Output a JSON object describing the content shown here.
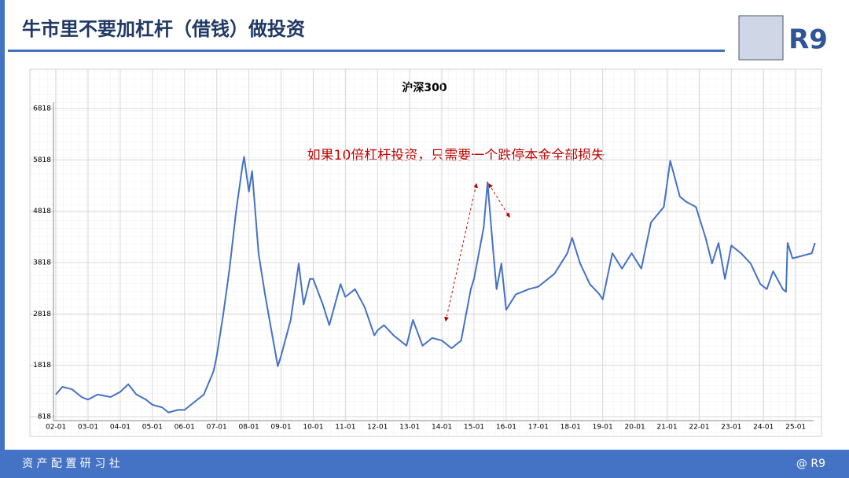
{
  "header": {
    "title": "牛市里不要加杠杆（借钱）做投资",
    "brand": "R9"
  },
  "footer": {
    "left": "资 产 配 置 研 习 社",
    "right": "@ R9"
  },
  "chart_data": {
    "type": "line",
    "title": "沪深300",
    "annotation": "如果10倍杠杆投资，只需要一个跌停本金全部损失",
    "series": [
      {
        "name": "沪深300",
        "color": "#4472c4",
        "x": [
          2002.0,
          2002.2,
          2002.5,
          2002.8,
          2003.0,
          2003.3,
          2003.7,
          2004.0,
          2004.25,
          2004.5,
          2004.8,
          2005.0,
          2005.3,
          2005.5,
          2005.8,
          2006.0,
          2006.3,
          2006.6,
          2006.9,
          2007.0,
          2007.2,
          2007.4,
          2007.6,
          2007.8,
          2007.85,
          2008.0,
          2008.1,
          2008.3,
          2008.5,
          2008.7,
          2008.9,
          2009.0,
          2009.3,
          2009.55,
          2009.7,
          2009.9,
          2010.0,
          2010.3,
          2010.5,
          2010.85,
          2011.0,
          2011.3,
          2011.6,
          2011.9,
          2012.0,
          2012.2,
          2012.5,
          2012.9,
          2013.1,
          2013.4,
          2013.7,
          2014.0,
          2014.3,
          2014.6,
          2014.9,
          2015.0,
          2015.3,
          2015.42,
          2015.6,
          2015.7,
          2015.85,
          2016.0,
          2016.3,
          2016.7,
          2017.0,
          2017.5,
          2017.9,
          2018.05,
          2018.3,
          2018.6,
          2018.9,
          2019.0,
          2019.3,
          2019.6,
          2019.9,
          2020.2,
          2020.5,
          2020.9,
          2021.1,
          2021.4,
          2021.6,
          2021.9,
          2022.2,
          2022.4,
          2022.6,
          2022.8,
          2023.0,
          2023.3,
          2023.6,
          2023.9,
          2024.1,
          2024.3,
          2024.6,
          2024.7,
          2024.75,
          2024.9,
          2025.2,
          2025.5,
          2025.6
        ],
        "values": [
          1250,
          1400,
          1350,
          1200,
          1150,
          1250,
          1200,
          1300,
          1450,
          1250,
          1150,
          1050,
          1000,
          900,
          950,
          950,
          1100,
          1250,
          1700,
          2000,
          2800,
          3700,
          4800,
          5700,
          5877,
          5200,
          5600,
          4000,
          3200,
          2500,
          1800,
          2000,
          2700,
          3800,
          3000,
          3500,
          3500,
          3000,
          2600,
          3400,
          3150,
          3300,
          2950,
          2400,
          2500,
          2600,
          2400,
          2200,
          2700,
          2200,
          2350,
          2300,
          2150,
          2300,
          3300,
          3500,
          4500,
          5380,
          4000,
          3300,
          3800,
          2900,
          3200,
          3300,
          3350,
          3600,
          4000,
          4300,
          3800,
          3400,
          3200,
          3100,
          4000,
          3700,
          4000,
          3700,
          4600,
          4900,
          5800,
          5100,
          5000,
          4900,
          4300,
          3800,
          4200,
          3500,
          4150,
          4000,
          3800,
          3400,
          3300,
          3650,
          3300,
          3250,
          4200,
          3900,
          3950,
          4000,
          4200
        ]
      }
    ],
    "xlim": [
      2001.24,
      2025.68
    ],
    "ylim": [
      818,
      6818
    ],
    "yticks": [
      818,
      1818,
      2818,
      3818,
      4818,
      5818,
      6818
    ],
    "xticks": [
      {
        "value": 2002,
        "label": "02-01"
      },
      {
        "value": 2003,
        "label": "03-01"
      },
      {
        "value": 2004,
        "label": "04-01"
      },
      {
        "value": 2005,
        "label": "05-01"
      },
      {
        "value": 2006,
        "label": "06-01"
      },
      {
        "value": 2007,
        "label": "07-01"
      },
      {
        "value": 2008,
        "label": "08-01"
      },
      {
        "value": 2009,
        "label": "09-01"
      },
      {
        "value": 2010,
        "label": "10-01"
      },
      {
        "value": 2011,
        "label": "11-01"
      },
      {
        "value": 2012,
        "label": "12-01"
      },
      {
        "value": 2013,
        "label": "13-01"
      },
      {
        "value": 2014,
        "label": "14-01"
      },
      {
        "value": 2015,
        "label": "15-01"
      },
      {
        "value": 2016,
        "label": "16-01"
      },
      {
        "value": 2017,
        "label": "17-01"
      },
      {
        "value": 2018,
        "label": "18-01"
      },
      {
        "value": 2019,
        "label": "19-01"
      },
      {
        "value": 2020,
        "label": "20-01"
      },
      {
        "value": 2021,
        "label": "21-01"
      },
      {
        "value": 2022,
        "label": "22-01"
      },
      {
        "value": 2023,
        "label": "23-01"
      },
      {
        "value": 2024,
        "label": "24-01"
      },
      {
        "value": 2025,
        "label": "25-01"
      }
    ],
    "grid": true
  }
}
